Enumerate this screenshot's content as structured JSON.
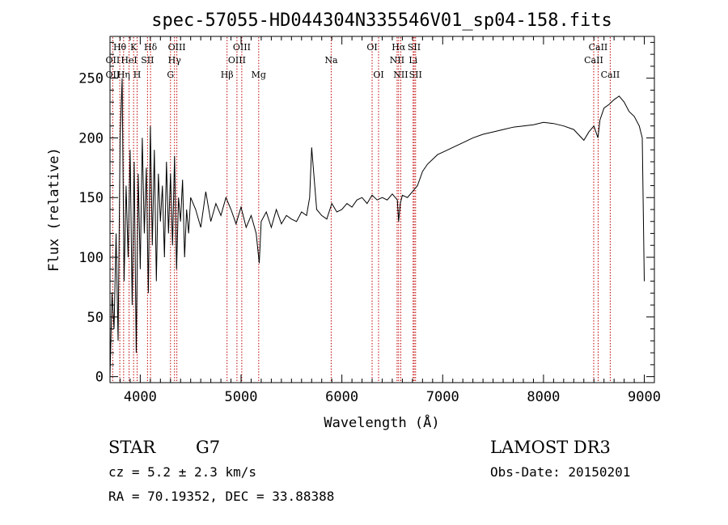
{
  "chart_data": {
    "type": "line",
    "title": "spec-57055-HD044304N335546V01_sp04-158.fits",
    "xlabel": "Wavelength (Å)",
    "ylabel": "Flux (relative)",
    "xlim": [
      3700,
      9100
    ],
    "ylim": [
      -5,
      285
    ],
    "xticks": [
      4000,
      5000,
      6000,
      7000,
      8000,
      9000
    ],
    "yticks": [
      0,
      50,
      100,
      150,
      200,
      250
    ],
    "series": [
      {
        "x": [
          3700,
          3720,
          3740,
          3760,
          3780,
          3800,
          3820,
          3840,
          3860,
          3880,
          3900,
          3920,
          3940,
          3960,
          3980,
          4000,
          4020,
          4040,
          4060,
          4080,
          4100,
          4120,
          4140,
          4160,
          4180,
          4200,
          4220,
          4240,
          4260,
          4280,
          4300,
          4320,
          4340,
          4360,
          4380,
          4400,
          4420,
          4440,
          4460,
          4480,
          4500,
          4550,
          4600,
          4650,
          4700,
          4750,
          4800,
          4850,
          4900,
          4950,
          5000,
          5050,
          5100,
          5150,
          5180,
          5200,
          5250,
          5300,
          5350,
          5400,
          5450,
          5500,
          5550,
          5600,
          5650,
          5680,
          5700,
          5750,
          5800,
          5850,
          5900,
          5950,
          6000,
          6050,
          6100,
          6150,
          6200,
          6250,
          6300,
          6350,
          6400,
          6450,
          6500,
          6550,
          6563,
          6580,
          6600,
          6650,
          6700,
          6750,
          6800,
          6850,
          6900,
          6950,
          7000,
          7100,
          7200,
          7300,
          7400,
          7500,
          7600,
          7700,
          7800,
          7900,
          8000,
          8100,
          8200,
          8300,
          8400,
          8450,
          8500,
          8540,
          8560,
          8600,
          8650,
          8700,
          8750,
          8800,
          8850,
          8900,
          8950,
          8980,
          9000
        ],
        "y": [
          0,
          70,
          40,
          120,
          30,
          200,
          250,
          80,
          160,
          100,
          190,
          60,
          180,
          20,
          170,
          90,
          200,
          120,
          175,
          70,
          210,
          110,
          190,
          80,
          170,
          130,
          160,
          100,
          180,
          120,
          170,
          110,
          185,
          90,
          150,
          130,
          165,
          100,
          140,
          120,
          150,
          140,
          125,
          155,
          130,
          145,
          135,
          150,
          140,
          128,
          142,
          125,
          135,
          120,
          95,
          130,
          138,
          125,
          140,
          128,
          135,
          132,
          130,
          138,
          135,
          150,
          192,
          140,
          135,
          132,
          145,
          138,
          140,
          145,
          142,
          148,
          150,
          145,
          152,
          148,
          150,
          148,
          153,
          148,
          130,
          145,
          152,
          150,
          155,
          160,
          172,
          178,
          182,
          186,
          188,
          192,
          196,
          200,
          203,
          205,
          207,
          209,
          210,
          211,
          213,
          212,
          210,
          207,
          198,
          205,
          210,
          200,
          215,
          225,
          228,
          232,
          235,
          230,
          222,
          218,
          210,
          200,
          80
        ]
      }
    ],
    "lines": [
      {
        "x": 3727,
        "label": "OII",
        "row": 2
      },
      {
        "x": 3727,
        "label": "OII",
        "row": 3
      },
      {
        "x": 3797,
        "label": "Hθ",
        "row": 1
      },
      {
        "x": 3835,
        "label": "Hη",
        "row": 3
      },
      {
        "x": 3889,
        "label": "HeI",
        "row": 2
      },
      {
        "x": 3934,
        "label": "K",
        "row": 1
      },
      {
        "x": 3969,
        "label": "H",
        "row": 3
      },
      {
        "x": 4072,
        "label": "SII",
        "row": 2
      },
      {
        "x": 4102,
        "label": "Hδ",
        "row": 1
      },
      {
        "x": 4300,
        "label": "G",
        "row": 3
      },
      {
        "x": 4340,
        "label": "Hγ",
        "row": 2
      },
      {
        "x": 4363,
        "label": "OIII",
        "row": 1
      },
      {
        "x": 4861,
        "label": "Hβ",
        "row": 3
      },
      {
        "x": 4959,
        "label": "OIII",
        "row": 2
      },
      {
        "x": 5007,
        "label": "OIII",
        "row": 1
      },
      {
        "x": 5175,
        "label": "Mg",
        "row": 3
      },
      {
        "x": 5894,
        "label": "Na",
        "row": 2
      },
      {
        "x": 6300,
        "label": "OI",
        "row": 1
      },
      {
        "x": 6364,
        "label": "OI",
        "row": 3
      },
      {
        "x": 6548,
        "label": "NII",
        "row": 2
      },
      {
        "x": 6563,
        "label": "Hα",
        "row": 1
      },
      {
        "x": 6584,
        "label": "NII",
        "row": 3
      },
      {
        "x": 6707,
        "label": "Li",
        "row": 2
      },
      {
        "x": 6717,
        "label": "SII",
        "row": 1
      },
      {
        "x": 6731,
        "label": "SII",
        "row": 3
      },
      {
        "x": 8498,
        "label": "CaII",
        "row": 2
      },
      {
        "x": 8542,
        "label": "CaII",
        "row": 1
      },
      {
        "x": 8662,
        "label": "CaII",
        "row": 3
      }
    ]
  },
  "info": {
    "class": "STAR",
    "subclass": "G7",
    "survey": "LAMOST DR3",
    "cz": "cz = 5.2 ± 2.3 km/s",
    "obs_date": "Obs-Date: 20150201",
    "coords": "RA =  70.19352, DEC =  33.88388"
  },
  "colors": {
    "line_marker": "#c00000",
    "spectrum": "#000000",
    "axes": "#000000"
  }
}
